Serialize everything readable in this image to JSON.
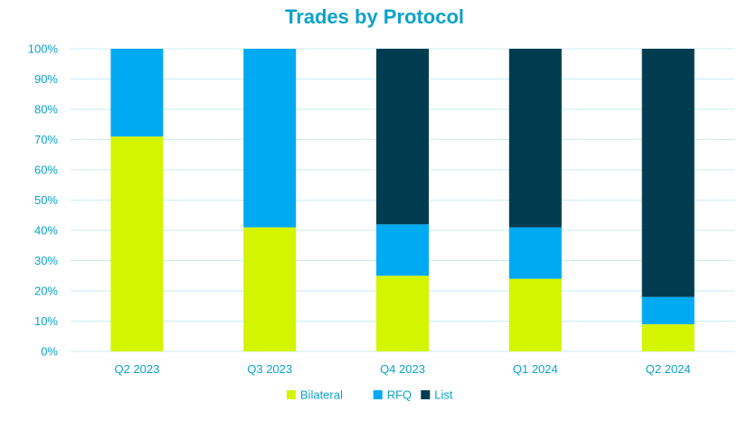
{
  "chart_data": {
    "type": "bar",
    "stacked": true,
    "title": "Trades by Protocol",
    "categories": [
      "Q2 2023",
      "Q3 2023",
      "Q4 2023",
      "Q1 2024",
      "Q2 2024"
    ],
    "series": [
      {
        "name": "Bilateral",
        "color": "#d4f500",
        "values": [
          71,
          41,
          25,
          24,
          9
        ]
      },
      {
        "name": "RFQ",
        "color": "#00aaf2",
        "values": [
          29,
          59,
          17,
          17,
          9
        ]
      },
      {
        "name": "List",
        "color": "#003b50",
        "values": [
          0,
          0,
          58,
          59,
          82
        ]
      }
    ],
    "ylim": [
      0,
      100
    ],
    "yticks": [
      "0%",
      "10%",
      "20%",
      "30%",
      "40%",
      "50%",
      "60%",
      "70%",
      "80%",
      "90%",
      "100%"
    ],
    "grid": true,
    "legend_position": "bottom"
  }
}
